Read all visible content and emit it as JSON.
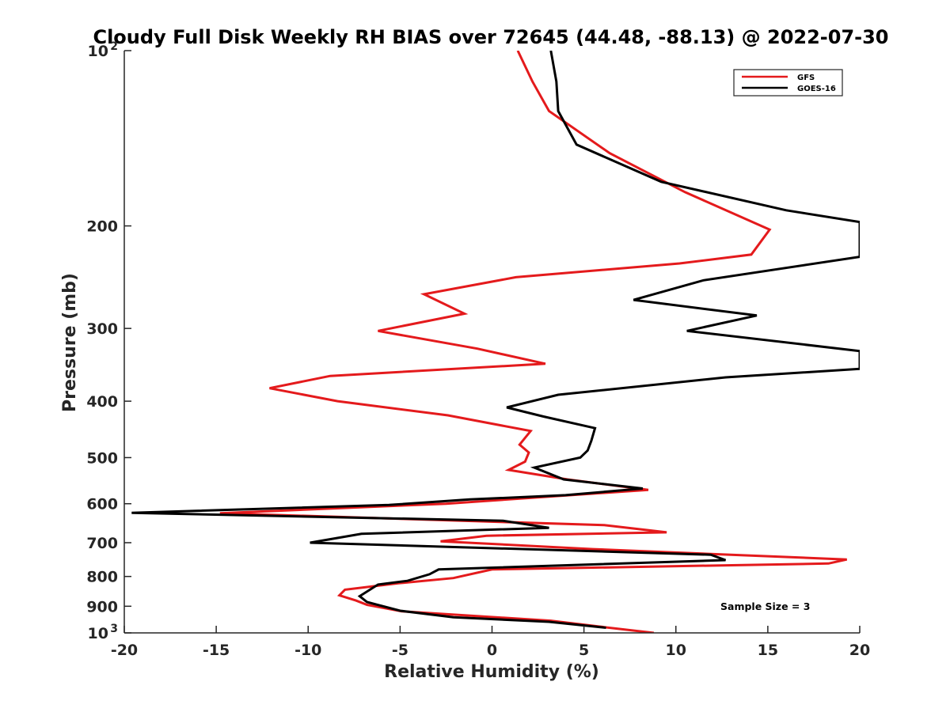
{
  "chart_data": {
    "type": "line",
    "title": "Cloudy Full Disk Weekly RH BIAS over 72645 (44.48, -88.13) @ 2022-07-30",
    "xlabel": "Relative Humidity (%)",
    "ylabel": "Pressure (mb)",
    "xlim": [
      -20,
      20
    ],
    "ylim": [
      100,
      1000
    ],
    "y_scale": "log",
    "y_reversed": true,
    "xticks": [
      -20,
      -15,
      -10,
      -5,
      0,
      5,
      10,
      15,
      20
    ],
    "yticks": [
      100,
      200,
      300,
      400,
      500,
      600,
      700,
      800,
      900,
      1000
    ],
    "ytick_labels": [
      {
        "base": "10",
        "exp": "2"
      },
      {
        "base": "200"
      },
      {
        "base": "300"
      },
      {
        "base": "400"
      },
      {
        "base": "500"
      },
      {
        "base": "600"
      },
      {
        "base": "700"
      },
      {
        "base": "800"
      },
      {
        "base": "900"
      },
      {
        "base": "10",
        "exp": "3"
      }
    ],
    "grid": false,
    "legend_position": "top-right",
    "annotation": "Sample Size = 3",
    "series": [
      {
        "name": "GFS",
        "color": "#e41a1c",
        "points": [
          [
            1.4,
            100
          ],
          [
            2.2,
            113
          ],
          [
            3.1,
            127
          ],
          [
            6.4,
            150
          ],
          [
            10.5,
            175
          ],
          [
            15.1,
            203
          ],
          [
            14.1,
            224
          ],
          [
            10.2,
            232
          ],
          [
            1.3,
            245
          ],
          [
            -3.7,
            262
          ],
          [
            -1.5,
            283
          ],
          [
            -6.2,
            303
          ],
          [
            -0.8,
            325
          ],
          [
            2.9,
            345
          ],
          [
            -8.8,
            362
          ],
          [
            -12.1,
            380
          ],
          [
            -8.4,
            400
          ],
          [
            -2.4,
            423
          ],
          [
            2.1,
            450
          ],
          [
            1.5,
            475
          ],
          [
            2.0,
            490
          ],
          [
            1.8,
            508
          ],
          [
            0.9,
            525
          ],
          [
            4.1,
            545
          ],
          [
            8.5,
            568
          ],
          [
            -2.5,
            600
          ],
          [
            -14.8,
            623
          ],
          [
            6.1,
            653
          ],
          [
            9.5,
            672
          ],
          [
            -0.3,
            681
          ],
          [
            -2.8,
            696
          ],
          [
            5.5,
            718
          ],
          [
            19.3,
            748
          ],
          [
            18.3,
            760
          ],
          [
            0.0,
            778
          ],
          [
            -2.1,
            805
          ],
          [
            -5.1,
            822
          ],
          [
            -8.0,
            843
          ],
          [
            -8.3,
            862
          ],
          [
            -7.4,
            880
          ],
          [
            -6.8,
            895
          ],
          [
            -4.9,
            918
          ],
          [
            3.2,
            953
          ],
          [
            5.8,
            975
          ],
          [
            8.8,
            1000
          ]
        ]
      },
      {
        "name": "GOES-16",
        "color": "#000000",
        "points": [
          [
            3.2,
            100
          ],
          [
            3.5,
            113
          ],
          [
            3.6,
            127
          ],
          [
            4.6,
            145
          ],
          [
            9.2,
            168
          ],
          [
            16.0,
            188
          ],
          [
            20.0,
            197
          ],
          [
            20.0,
            226
          ],
          [
            11.5,
            248
          ],
          [
            7.7,
            268
          ],
          [
            14.4,
            285
          ],
          [
            10.6,
            303
          ],
          [
            20.0,
            328
          ],
          [
            20.0,
            352
          ],
          [
            12.7,
            364
          ],
          [
            3.6,
            390
          ],
          [
            0.8,
            410
          ],
          [
            2.8,
            425
          ],
          [
            5.6,
            445
          ],
          [
            5.4,
            468
          ],
          [
            5.2,
            486
          ],
          [
            4.8,
            500
          ],
          [
            2.3,
            520
          ],
          [
            3.9,
            545
          ],
          [
            8.2,
            565
          ],
          [
            4.0,
            580
          ],
          [
            -1.2,
            590
          ],
          [
            -5.6,
            603
          ],
          [
            -19.6,
            622
          ],
          [
            0.6,
            642
          ],
          [
            3.1,
            660
          ],
          [
            -7.1,
            676
          ],
          [
            -9.9,
            700
          ],
          [
            11.9,
            734
          ],
          [
            12.7,
            750
          ],
          [
            -2.9,
            778
          ],
          [
            -3.4,
            793
          ],
          [
            -4.6,
            814
          ],
          [
            -6.2,
            826
          ],
          [
            -7.2,
            865
          ],
          [
            -6.8,
            885
          ],
          [
            -5.0,
            916
          ],
          [
            -2.1,
            940
          ],
          [
            3.1,
            957
          ],
          [
            6.2,
            980
          ]
        ]
      }
    ]
  }
}
